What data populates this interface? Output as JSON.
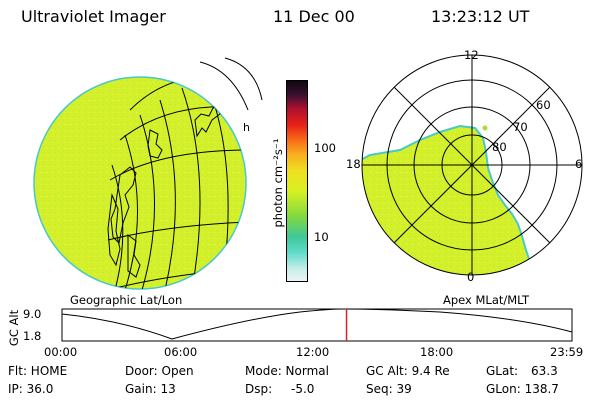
{
  "header": {
    "instrument": "Ultraviolet Imager",
    "date": "11 Dec 00",
    "time": "13:23:12 UT"
  },
  "colors": {
    "disk_fill": "#d4f02a",
    "disk_edge": "#48c8c8"
  },
  "colorbar": {
    "unit_label": "photon cm⁻²s⁻¹",
    "tick_labels": [
      "100",
      "10"
    ],
    "stops": [
      "#eaf4f4",
      "#a8e8e0",
      "#40d8c8",
      "#40c878",
      "#a8e030",
      "#e8f020",
      "#f8b020",
      "#f87018",
      "#e82018",
      "#b01030",
      "#3a1030",
      "#100810"
    ]
  },
  "geo_panel": {
    "label": "Geographic Lat/Lon",
    "label_short": "h"
  },
  "polar_panel": {
    "label": "Apex MLat/MLT",
    "mlt_labels": {
      "top": "12",
      "left": "18",
      "right": "6",
      "bottom": "0"
    },
    "mlat_labels": [
      "60",
      "70",
      "80"
    ]
  },
  "timeline": {
    "axis_label": "GC Alt",
    "y_max": "9.0",
    "y_min": "1.8",
    "x_ticks": [
      "00:00",
      "06:00",
      "12:00",
      "18:00",
      "23:59"
    ],
    "current_marker_hours": 13.39
  },
  "status": {
    "flt": "Flt: HOME",
    "ip": "IP: 36.0",
    "door": "Door: Open",
    "gain": "Gain: 13",
    "mode": "Mode: Normal",
    "dsp_label": "Dsp:",
    "dsp_value": "-5.0",
    "gc_alt": "GC Alt: 9.4 Re",
    "seq": "Seq: 39",
    "glat_label": "GLat:",
    "glat_value": "63.3",
    "glon": "GLon: 138.7"
  }
}
